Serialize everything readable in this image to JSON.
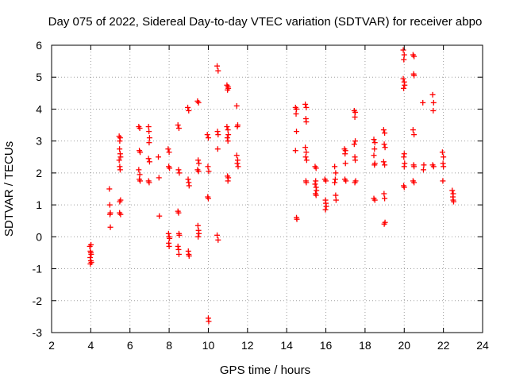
{
  "chart_data": {
    "type": "scatter",
    "title": "Day 075 of 2022, Sidereal Day-to-day VTEC variation (SDTVAR) for receiver abpo",
    "xlabel": "GPS time / hours",
    "ylabel": "SDTVAR / TECUs",
    "xlim": [
      2,
      24
    ],
    "ylim": [
      -3,
      6
    ],
    "xticks": [
      2,
      4,
      6,
      8,
      10,
      12,
      14,
      16,
      18,
      20,
      22,
      24
    ],
    "yticks": [
      -3,
      -2,
      -1,
      0,
      1,
      2,
      3,
      4,
      5,
      6
    ],
    "grid": true,
    "marker": "+",
    "color": "#ff0000",
    "points": [
      [
        3.95,
        -0.3
      ],
      [
        3.98,
        -0.45
      ],
      [
        4.0,
        -0.5
      ],
      [
        4.02,
        -0.55
      ],
      [
        3.97,
        -0.65
      ],
      [
        4.0,
        -0.75
      ],
      [
        4.03,
        -0.8
      ],
      [
        3.98,
        -0.85
      ],
      [
        4.01,
        -0.25
      ],
      [
        4.95,
        1.5
      ],
      [
        4.97,
        1.0
      ],
      [
        5.0,
        0.75
      ],
      [
        4.98,
        0.7
      ],
      [
        5.0,
        0.3
      ],
      [
        5.45,
        3.15
      ],
      [
        5.5,
        3.1
      ],
      [
        5.48,
        3.0
      ],
      [
        5.47,
        2.75
      ],
      [
        5.5,
        2.6
      ],
      [
        5.52,
        2.5
      ],
      [
        5.45,
        2.4
      ],
      [
        5.48,
        2.2
      ],
      [
        5.5,
        2.1
      ],
      [
        5.52,
        1.15
      ],
      [
        5.48,
        1.1
      ],
      [
        5.47,
        0.75
      ],
      [
        5.52,
        0.7
      ],
      [
        6.45,
        3.45
      ],
      [
        6.5,
        3.4
      ],
      [
        6.48,
        2.7
      ],
      [
        6.52,
        2.65
      ],
      [
        6.45,
        2.1
      ],
      [
        6.5,
        1.95
      ],
      [
        6.48,
        1.8
      ],
      [
        6.52,
        1.75
      ],
      [
        6.95,
        3.45
      ],
      [
        6.97,
        3.3
      ],
      [
        7.0,
        3.1
      ],
      [
        6.98,
        2.95
      ],
      [
        6.95,
        2.45
      ],
      [
        7.0,
        2.35
      ],
      [
        6.95,
        1.75
      ],
      [
        6.98,
        1.7
      ],
      [
        7.45,
        2.5
      ],
      [
        7.48,
        1.85
      ],
      [
        7.5,
        0.65
      ],
      [
        7.95,
        2.75
      ],
      [
        8.0,
        2.65
      ],
      [
        7.98,
        2.2
      ],
      [
        8.02,
        2.15
      ],
      [
        7.97,
        0.1
      ],
      [
        8.0,
        0.0
      ],
      [
        8.02,
        -0.05
      ],
      [
        7.98,
        -0.2
      ],
      [
        8.0,
        -0.3
      ],
      [
        8.45,
        3.5
      ],
      [
        8.5,
        3.4
      ],
      [
        8.48,
        2.1
      ],
      [
        8.52,
        2.0
      ],
      [
        8.45,
        0.8
      ],
      [
        8.48,
        0.75
      ],
      [
        8.5,
        0.1
      ],
      [
        8.52,
        0.05
      ],
      [
        8.45,
        -0.3
      ],
      [
        8.48,
        -0.4
      ],
      [
        8.5,
        -0.55
      ],
      [
        8.95,
        4.05
      ],
      [
        9.0,
        3.95
      ],
      [
        8.97,
        1.8
      ],
      [
        9.0,
        1.7
      ],
      [
        9.02,
        1.6
      ],
      [
        8.98,
        -0.45
      ],
      [
        9.0,
        -0.55
      ],
      [
        9.02,
        -0.6
      ],
      [
        9.45,
        4.25
      ],
      [
        9.5,
        4.2
      ],
      [
        9.48,
        2.4
      ],
      [
        9.52,
        2.3
      ],
      [
        9.45,
        2.1
      ],
      [
        9.5,
        2.05
      ],
      [
        9.47,
        0.35
      ],
      [
        9.5,
        0.2
      ],
      [
        9.52,
        0.1
      ],
      [
        9.48,
        0.0
      ],
      [
        9.95,
        3.2
      ],
      [
        10.0,
        3.1
      ],
      [
        9.98,
        2.2
      ],
      [
        10.02,
        2.05
      ],
      [
        9.97,
        1.25
      ],
      [
        10.0,
        1.2
      ],
      [
        10.0,
        -2.55
      ],
      [
        10.02,
        -2.65
      ],
      [
        10.45,
        5.35
      ],
      [
        10.5,
        5.2
      ],
      [
        10.47,
        3.3
      ],
      [
        10.5,
        3.2
      ],
      [
        10.48,
        2.75
      ],
      [
        10.45,
        0.05
      ],
      [
        10.5,
        -0.1
      ],
      [
        10.95,
        4.75
      ],
      [
        11.0,
        4.7
      ],
      [
        11.02,
        4.65
      ],
      [
        10.98,
        4.6
      ],
      [
        10.95,
        3.45
      ],
      [
        11.0,
        3.35
      ],
      [
        11.02,
        3.2
      ],
      [
        10.97,
        3.1
      ],
      [
        11.0,
        3.0
      ],
      [
        10.98,
        1.9
      ],
      [
        11.02,
        1.85
      ],
      [
        11.0,
        1.75
      ],
      [
        11.45,
        4.1
      ],
      [
        11.5,
        3.5
      ],
      [
        11.48,
        3.45
      ],
      [
        11.45,
        2.55
      ],
      [
        11.5,
        2.4
      ],
      [
        11.48,
        2.3
      ],
      [
        11.52,
        2.2
      ],
      [
        14.45,
        4.05
      ],
      [
        14.5,
        4.0
      ],
      [
        14.48,
        3.85
      ],
      [
        14.5,
        3.3
      ],
      [
        14.45,
        2.7
      ],
      [
        14.5,
        0.6
      ],
      [
        14.52,
        0.55
      ],
      [
        14.95,
        4.15
      ],
      [
        15.0,
        4.05
      ],
      [
        14.98,
        3.7
      ],
      [
        15.0,
        3.6
      ],
      [
        14.95,
        2.8
      ],
      [
        15.0,
        2.65
      ],
      [
        14.97,
        2.5
      ],
      [
        15.02,
        2.4
      ],
      [
        14.98,
        1.75
      ],
      [
        15.0,
        1.7
      ],
      [
        15.45,
        2.2
      ],
      [
        15.5,
        2.15
      ],
      [
        15.48,
        1.75
      ],
      [
        15.45,
        1.65
      ],
      [
        15.5,
        1.55
      ],
      [
        15.52,
        1.45
      ],
      [
        15.47,
        1.35
      ],
      [
        15.5,
        1.3
      ],
      [
        15.95,
        1.8
      ],
      [
        16.0,
        1.75
      ],
      [
        15.98,
        1.15
      ],
      [
        16.0,
        1.05
      ],
      [
        16.02,
        0.95
      ],
      [
        15.98,
        0.85
      ],
      [
        16.45,
        2.2
      ],
      [
        16.5,
        2.0
      ],
      [
        16.48,
        1.8
      ],
      [
        16.45,
        1.7
      ],
      [
        16.5,
        1.3
      ],
      [
        16.52,
        1.15
      ],
      [
        16.95,
        2.75
      ],
      [
        17.0,
        2.7
      ],
      [
        16.98,
        2.6
      ],
      [
        17.0,
        2.3
      ],
      [
        16.97,
        1.8
      ],
      [
        17.02,
        1.75
      ],
      [
        17.45,
        3.95
      ],
      [
        17.5,
        3.9
      ],
      [
        17.48,
        3.75
      ],
      [
        17.5,
        3.0
      ],
      [
        17.45,
        2.9
      ],
      [
        17.48,
        2.5
      ],
      [
        17.5,
        2.4
      ],
      [
        17.52,
        1.75
      ],
      [
        17.48,
        1.7
      ],
      [
        18.45,
        3.05
      ],
      [
        18.5,
        2.95
      ],
      [
        18.48,
        2.75
      ],
      [
        18.45,
        2.55
      ],
      [
        18.5,
        2.3
      ],
      [
        18.48,
        2.25
      ],
      [
        18.45,
        1.2
      ],
      [
        18.5,
        1.15
      ],
      [
        18.95,
        3.35
      ],
      [
        19.0,
        3.25
      ],
      [
        18.98,
        2.9
      ],
      [
        19.02,
        2.8
      ],
      [
        18.95,
        2.35
      ],
      [
        19.0,
        2.25
      ],
      [
        18.97,
        1.35
      ],
      [
        19.0,
        1.2
      ],
      [
        19.02,
        0.45
      ],
      [
        18.98,
        0.4
      ],
      [
        19.95,
        5.85
      ],
      [
        20.0,
        5.7
      ],
      [
        19.98,
        5.55
      ],
      [
        19.95,
        4.95
      ],
      [
        20.0,
        4.85
      ],
      [
        20.02,
        4.75
      ],
      [
        19.97,
        4.65
      ],
      [
        20.0,
        2.6
      ],
      [
        19.98,
        2.5
      ],
      [
        20.02,
        2.3
      ],
      [
        20.0,
        2.2
      ],
      [
        19.97,
        1.6
      ],
      [
        20.0,
        1.55
      ],
      [
        20.45,
        5.7
      ],
      [
        20.5,
        5.65
      ],
      [
        20.48,
        5.1
      ],
      [
        20.5,
        5.05
      ],
      [
        20.45,
        3.35
      ],
      [
        20.5,
        3.2
      ],
      [
        20.48,
        2.25
      ],
      [
        20.5,
        2.2
      ],
      [
        20.45,
        1.75
      ],
      [
        20.5,
        1.7
      ],
      [
        20.95,
        4.2
      ],
      [
        21.0,
        2.25
      ],
      [
        20.98,
        2.1
      ],
      [
        21.45,
        4.45
      ],
      [
        21.5,
        4.2
      ],
      [
        21.48,
        3.95
      ],
      [
        21.45,
        2.25
      ],
      [
        21.5,
        2.2
      ],
      [
        21.95,
        2.65
      ],
      [
        22.0,
        2.5
      ],
      [
        21.98,
        2.3
      ],
      [
        22.0,
        2.2
      ],
      [
        21.97,
        1.75
      ],
      [
        22.45,
        1.45
      ],
      [
        22.5,
        1.35
      ],
      [
        22.48,
        1.25
      ],
      [
        22.5,
        1.15
      ],
      [
        22.52,
        1.1
      ]
    ]
  }
}
